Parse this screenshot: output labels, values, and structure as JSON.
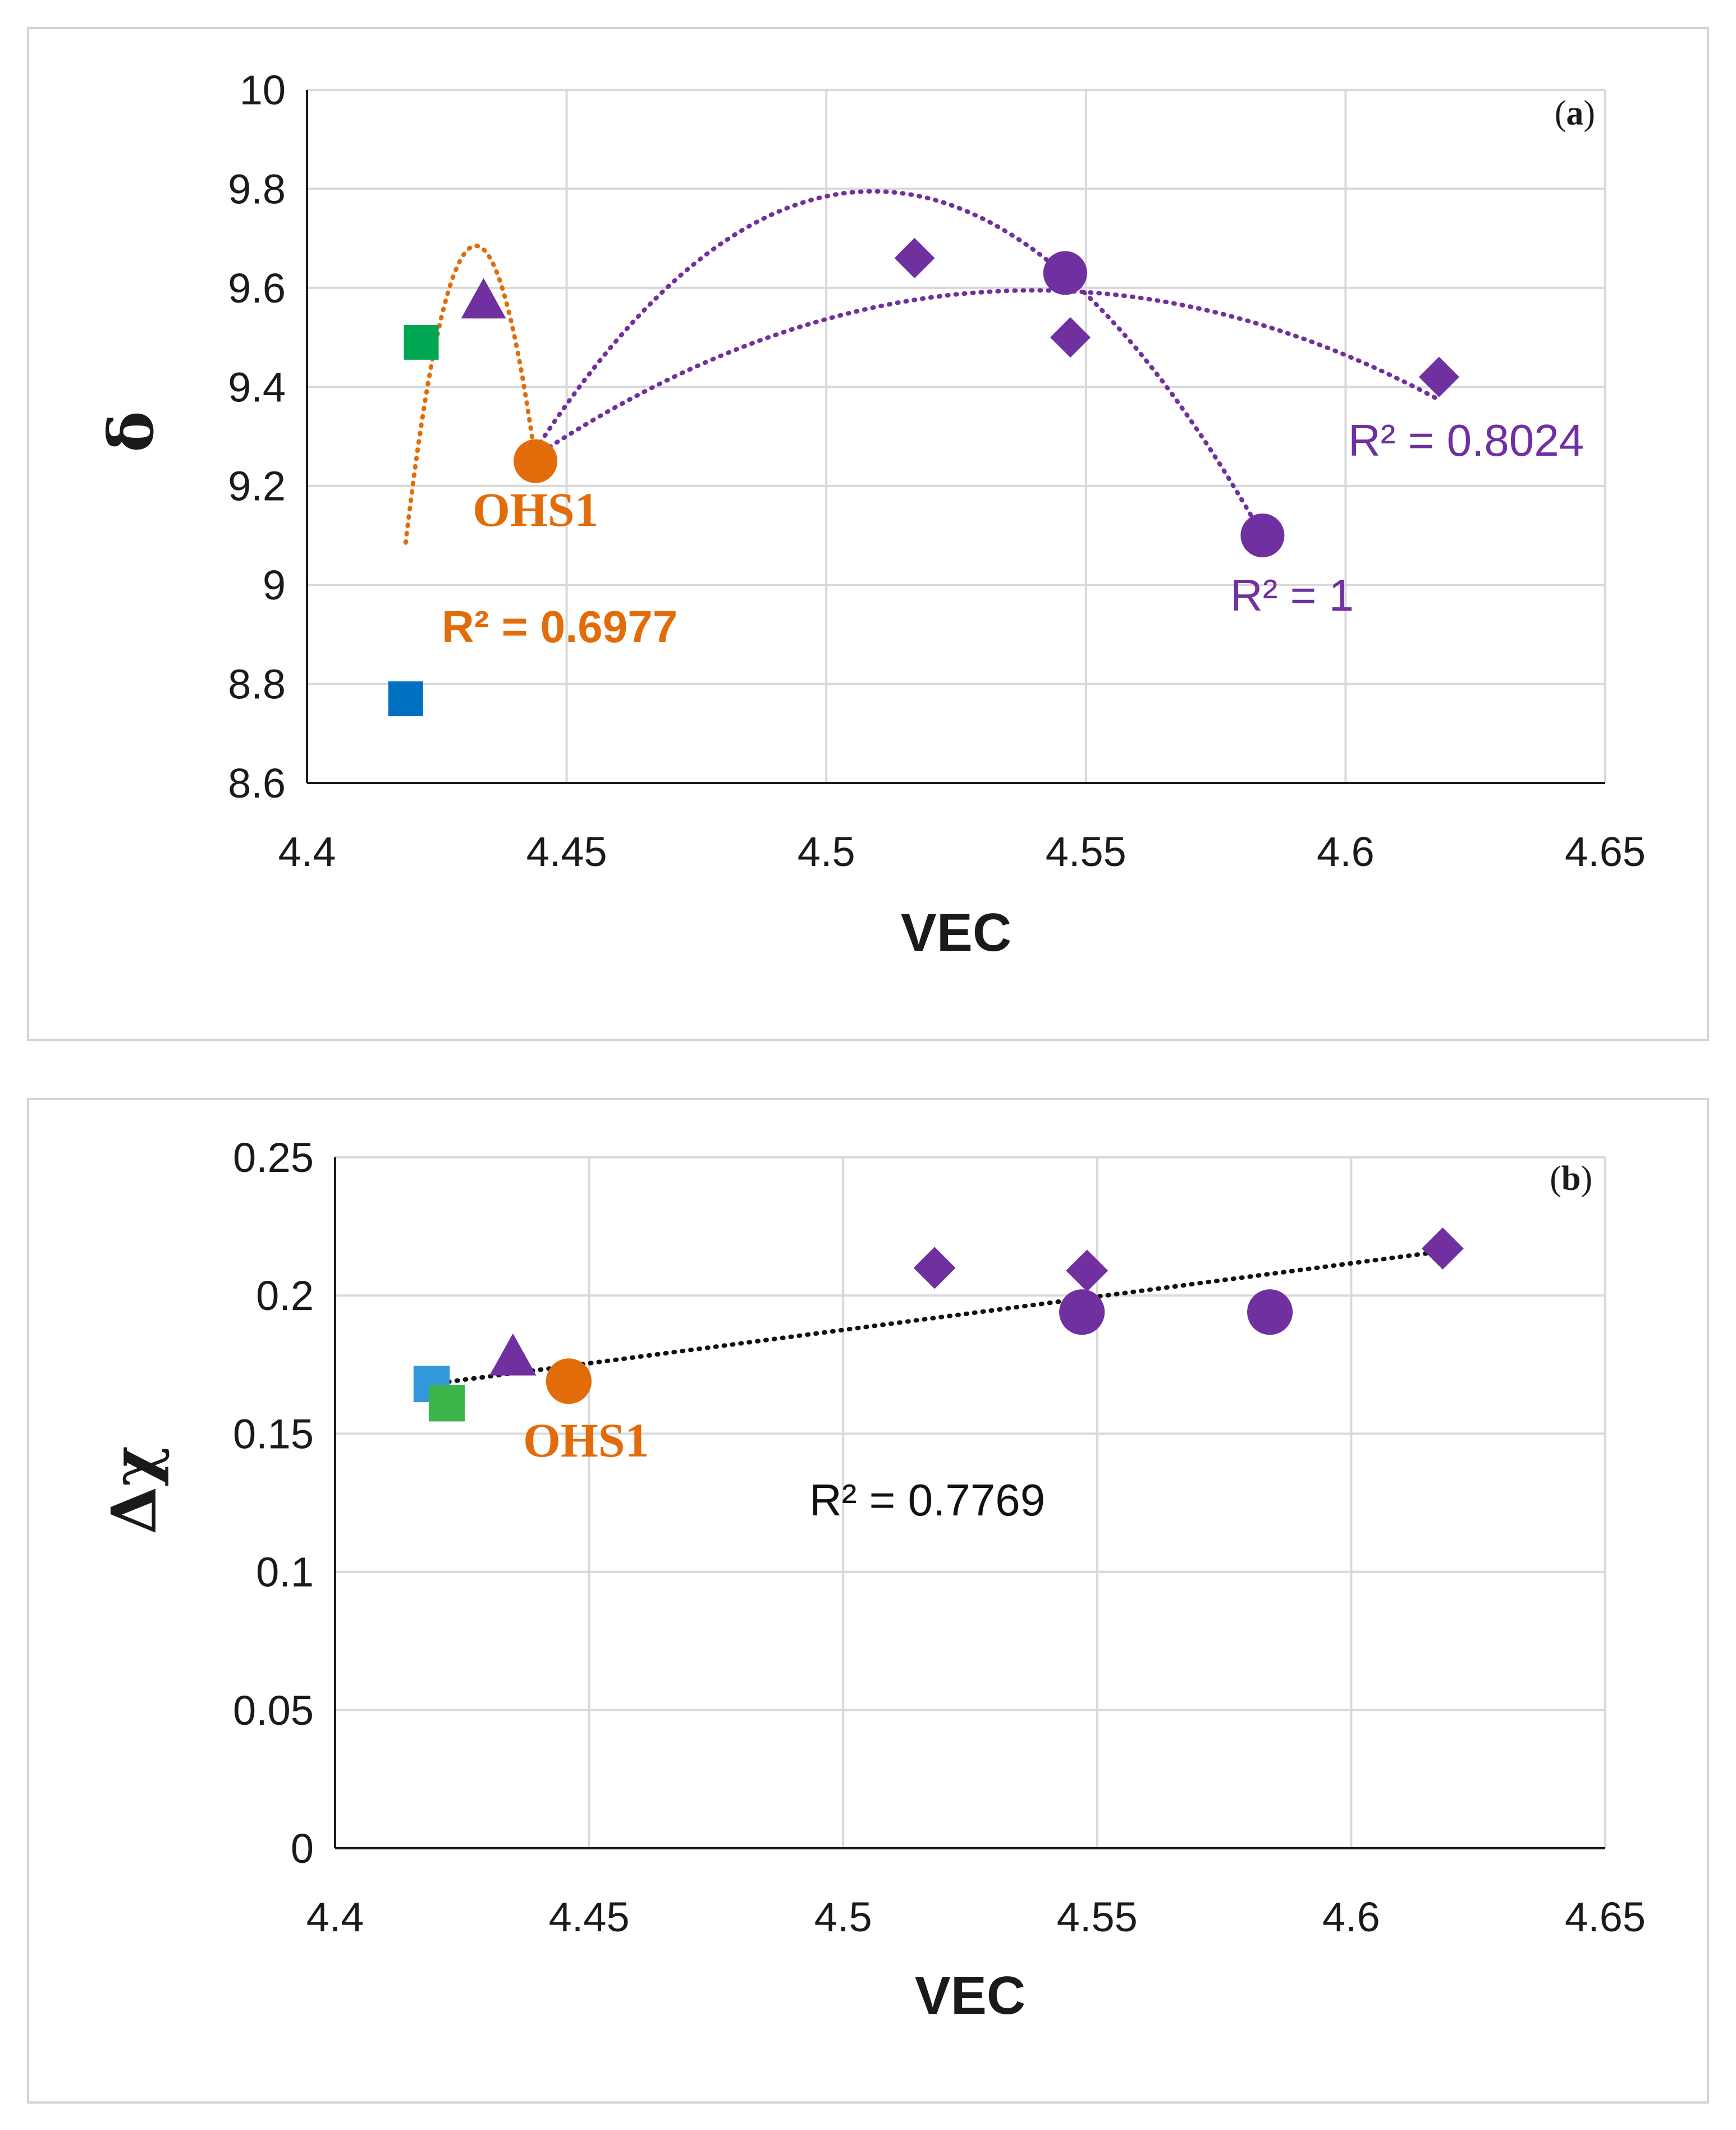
{
  "chart_data": [
    {
      "type": "scatter",
      "panel_tag": {
        "open": "(",
        "letter": "a",
        "close": ")"
      },
      "title": "",
      "xlabel": "VEC",
      "ylabel": "δ",
      "xlim": [
        4.4,
        4.65
      ],
      "ylim": [
        8.6,
        10
      ],
      "x_ticks": [
        "4.4",
        "4.45",
        "4.5",
        "4.55",
        "4.6",
        "4.65"
      ],
      "y_ticks": [
        "8.6",
        "8.8",
        "9",
        "9.2",
        "9.4",
        "9.6",
        "9.8",
        "10"
      ],
      "grid": true,
      "series": [
        {
          "name": "blue-square",
          "marker": "square",
          "color": "#0070c0",
          "points": [
            {
              "x": 4.419,
              "y": 8.77
            }
          ]
        },
        {
          "name": "green-square",
          "marker": "square",
          "color": "#00a651",
          "points": [
            {
              "x": 4.422,
              "y": 9.49
            }
          ]
        },
        {
          "name": "purple-triangle",
          "marker": "triangle",
          "color": "#7030a0",
          "points": [
            {
              "x": 4.434,
              "y": 9.57
            }
          ]
        },
        {
          "name": "OHS1",
          "marker": "circle",
          "color": "#e36c0a",
          "points": [
            {
              "x": 4.444,
              "y": 9.25
            }
          ]
        },
        {
          "name": "purple-diamond",
          "marker": "diamond",
          "color": "#7030a0",
          "points": [
            {
              "x": 4.517,
              "y": 9.66
            },
            {
              "x": 4.547,
              "y": 9.5
            },
            {
              "x": 4.618,
              "y": 9.42
            }
          ]
        },
        {
          "name": "purple-circle",
          "marker": "circle",
          "color": "#7030a0",
          "points": [
            {
              "x": 4.546,
              "y": 9.63
            },
            {
              "x": 4.584,
              "y": 9.1
            }
          ]
        }
      ],
      "trendlines": [
        {
          "name": "orange-poly",
          "color": "#e36c0a",
          "x_range": [
            4.419,
            4.444
          ],
          "coeffs": [
            4.0785,
            250.7,
            -28279.2
          ],
          "r2_label": "R² = 0.6977"
        },
        {
          "name": "purple-circle-poly",
          "color": "#7030a0",
          "x_range": [
            4.444,
            4.584
          ],
          "coeffs": [
            -3.2051,
            221.32,
            -24583.3
          ],
          "r2_label": "R² = 1"
        },
        {
          "name": "purple-diamond-poly",
          "color": "#7030a0",
          "x_range": [
            4.444,
            4.618
          ],
          "coeffs": [
            9.5996,
            0,
            -16.0
          ],
          "r2_label": "R² = 0.8024"
        }
      ],
      "annotations": [
        {
          "text": "OHS1",
          "color": "#e36c0a"
        }
      ]
    },
    {
      "type": "scatter",
      "panel_tag": {
        "open": "(",
        "letter": "b",
        "close": ")"
      },
      "title": "",
      "xlabel": "VEC",
      "ylabel": "Δχ",
      "xlim": [
        4.4,
        4.65
      ],
      "ylim": [
        0,
        0.25
      ],
      "x_ticks": [
        "4.4",
        "4.45",
        "4.5",
        "4.55",
        "4.6",
        "4.65"
      ],
      "y_ticks": [
        "0",
        "0.05",
        "0.1",
        "0.15",
        "0.2",
        "0.25"
      ],
      "grid": true,
      "series": [
        {
          "name": "blue-square",
          "marker": "square",
          "color": "#3399dd",
          "points": [
            {
              "x": 4.419,
              "y": 0.168
            }
          ]
        },
        {
          "name": "green-square",
          "marker": "square",
          "color": "#3cb54a",
          "points": [
            {
              "x": 4.422,
              "y": 0.161
            }
          ]
        },
        {
          "name": "purple-triangle",
          "marker": "triangle",
          "color": "#7030a0",
          "points": [
            {
              "x": 4.435,
              "y": 0.177
            }
          ]
        },
        {
          "name": "OHS1",
          "marker": "circle",
          "color": "#e36c0a",
          "points": [
            {
              "x": 4.446,
              "y": 0.169
            }
          ]
        },
        {
          "name": "purple-diamond",
          "marker": "diamond",
          "color": "#7030a0",
          "points": [
            {
              "x": 4.518,
              "y": 0.21
            },
            {
              "x": 4.548,
              "y": 0.209
            },
            {
              "x": 4.618,
              "y": 0.217
            }
          ]
        },
        {
          "name": "purple-circle",
          "marker": "circle",
          "color": "#7030a0",
          "points": [
            {
              "x": 4.547,
              "y": 0.194
            },
            {
              "x": 4.584,
              "y": 0.194
            }
          ]
        }
      ],
      "trendlines": [
        {
          "name": "black-linear",
          "color": "#111111",
          "x_range": [
            4.419,
            4.618
          ],
          "linear": [
            0.168,
            0.216
          ],
          "r2_label": "R² = 0.7769"
        }
      ],
      "annotations": [
        {
          "text": "OHS1",
          "color": "#e36c0a"
        }
      ]
    }
  ]
}
